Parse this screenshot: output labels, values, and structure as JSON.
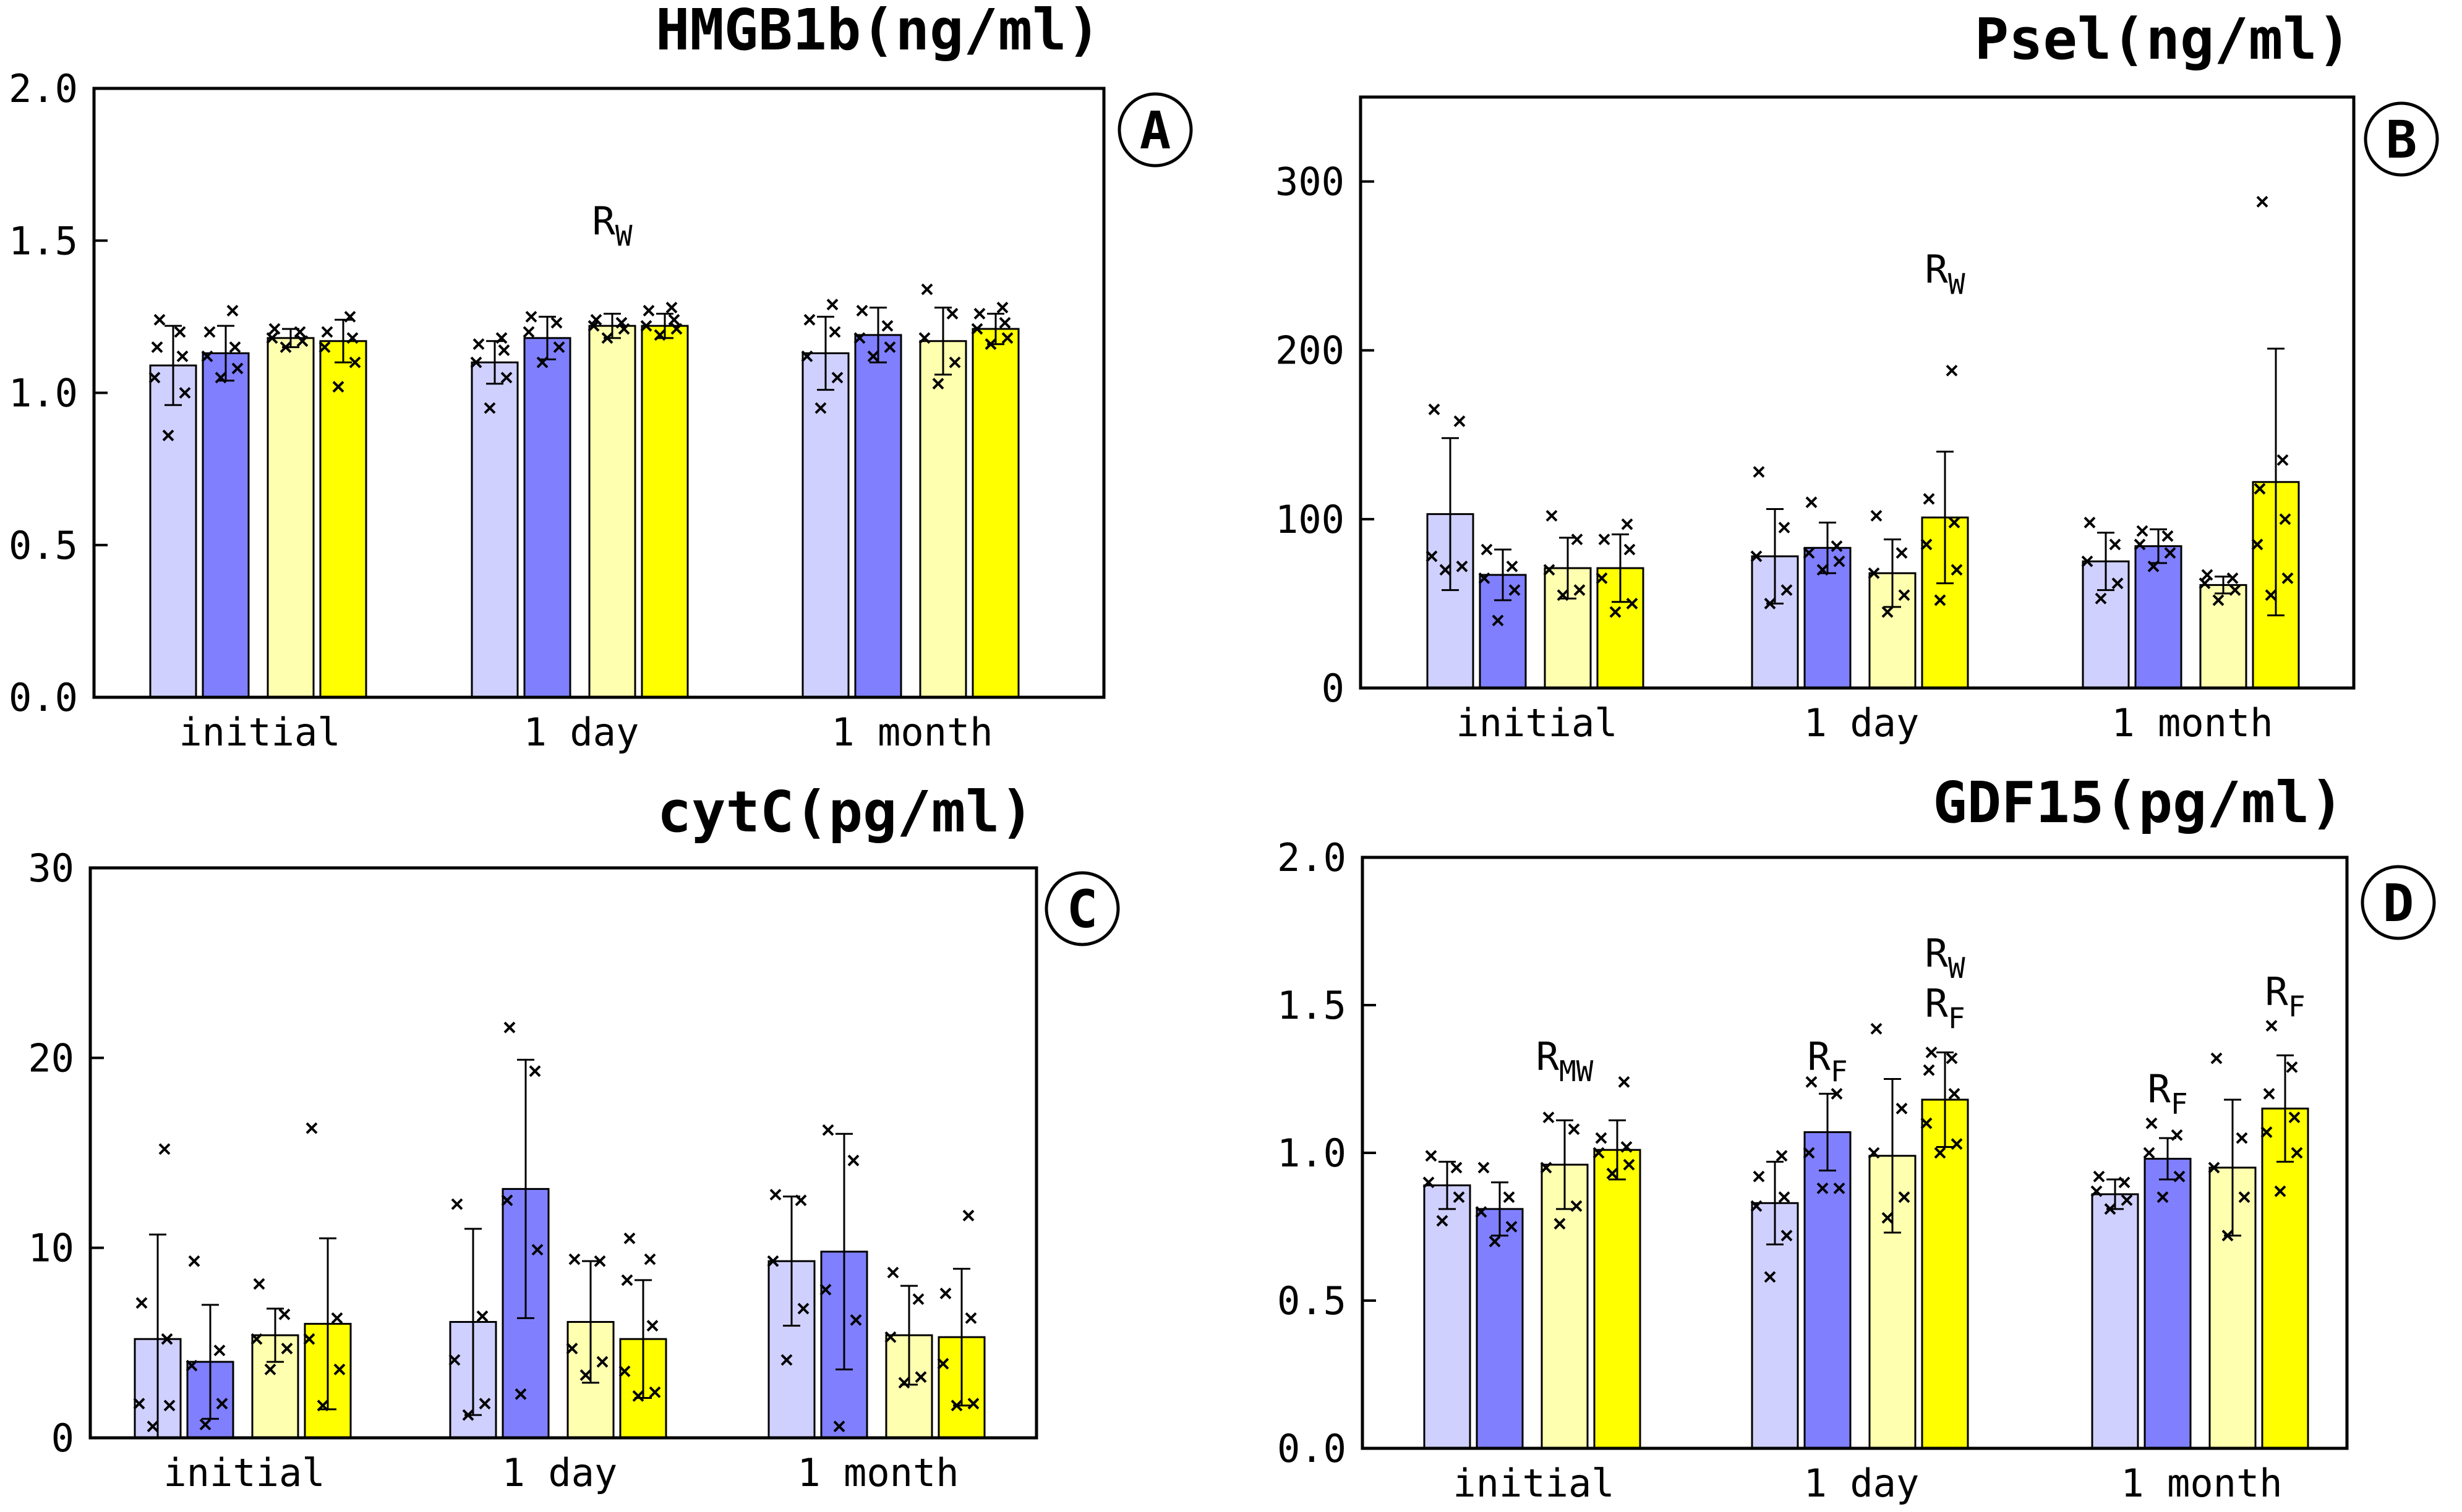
{
  "colors": {
    "light_blue": "#D0D0FF",
    "blue": "#8080FF",
    "light_yellow": "#FFFFB0",
    "yellow": "#FFFF00"
  },
  "chart_data": [
    {
      "type": "bar",
      "panel_label": "A",
      "title": "HMGB1b(ng/ml)",
      "categories": [
        "initial",
        "1 day",
        "1 month"
      ],
      "ylim": [
        0,
        2.0
      ],
      "yticks": [
        0.0,
        0.5,
        1.0,
        1.5,
        2.0
      ],
      "ytick_labels": [
        "0.0",
        "0.5",
        "1.0",
        "1.5",
        "2.0"
      ],
      "series": [
        {
          "name": "light blue",
          "values": [
            1.09,
            1.1,
            1.13
          ],
          "err": [
            0.13,
            0.07,
            0.12
          ],
          "points": [
            [
              0.86,
              1.0,
              1.05,
              1.12,
              1.15,
              1.2,
              1.24
            ],
            [
              0.95,
              1.05,
              1.1,
              1.14,
              1.16,
              1.18
            ],
            [
              0.95,
              1.05,
              1.12,
              1.2,
              1.24,
              1.29
            ]
          ]
        },
        {
          "name": "blue",
          "values": [
            1.13,
            1.18,
            1.19
          ],
          "err": [
            0.09,
            0.07,
            0.09
          ],
          "points": [
            [
              1.05,
              1.08,
              1.12,
              1.15,
              1.2,
              1.27
            ],
            [
              1.1,
              1.15,
              1.2,
              1.23,
              1.25
            ],
            [
              1.12,
              1.15,
              1.18,
              1.22,
              1.27
            ]
          ]
        },
        {
          "name": "light yellow",
          "values": [
            1.18,
            1.22,
            1.17
          ],
          "err": [
            0.03,
            0.04,
            0.11
          ],
          "points": [
            [
              1.15,
              1.17,
              1.18,
              1.2,
              1.21
            ],
            [
              1.18,
              1.21,
              1.22,
              1.23,
              1.24
            ],
            [
              1.03,
              1.1,
              1.18,
              1.26,
              1.34
            ]
          ]
        },
        {
          "name": "yellow",
          "values": [
            1.17,
            1.22,
            1.21
          ],
          "err": [
            0.07,
            0.04,
            0.05
          ],
          "points": [
            [
              1.02,
              1.1,
              1.15,
              1.18,
              1.2,
              1.25
            ],
            [
              1.19,
              1.21,
              1.22,
              1.24,
              1.27,
              1.28
            ],
            [
              1.16,
              1.18,
              1.21,
              1.23,
              1.26,
              1.28
            ]
          ]
        }
      ],
      "annotations": [
        {
          "text": "R",
          "sub": "W",
          "category": 1,
          "series": 2,
          "y": 1.52
        }
      ]
    },
    {
      "type": "bar",
      "panel_label": "B",
      "title": "Psel(ng/ml)",
      "categories": [
        "initial",
        "1 day",
        "1 month"
      ],
      "ylim": [
        0,
        350
      ],
      "yticks": [
        0,
        100,
        200,
        300
      ],
      "ytick_labels": [
        "0",
        "100",
        "200",
        "300"
      ],
      "series": [
        {
          "name": "light blue",
          "values": [
            103,
            78,
            75
          ],
          "err": [
            45,
            28,
            17
          ],
          "points": [
            [
              70,
              72,
              78,
              158,
              165
            ],
            [
              50,
              58,
              78,
              95,
              128
            ],
            [
              53,
              62,
              75,
              85,
              98
            ]
          ]
        },
        {
          "name": "blue",
          "values": [
            67,
            83,
            84
          ],
          "err": [
            15,
            15,
            10
          ],
          "points": [
            [
              40,
              58,
              65,
              72,
              82
            ],
            [
              70,
              75,
              80,
              84,
              110
            ],
            [
              72,
              80,
              85,
              90,
              93
            ]
          ]
        },
        {
          "name": "light yellow",
          "values": [
            71,
            68,
            61
          ],
          "err": [
            18,
            20,
            5
          ],
          "points": [
            [
              55,
              58,
              70,
              88,
              102
            ],
            [
              45,
              55,
              68,
              80,
              102
            ],
            [
              52,
              58,
              62,
              65,
              67
            ]
          ]
        },
        {
          "name": "yellow",
          "values": [
            71,
            101,
            122
          ],
          "err": [
            20,
            39,
            79
          ],
          "points": [
            [
              45,
              50,
              65,
              82,
              88,
              97
            ],
            [
              52,
              70,
              85,
              98,
              112,
              188
            ],
            [
              55,
              65,
              85,
              100,
              118,
              135,
              288
            ]
          ]
        }
      ],
      "annotations": [
        {
          "text": "R",
          "sub": "W",
          "category": 1,
          "series": 3,
          "y": 240
        }
      ]
    },
    {
      "type": "bar",
      "panel_label": "C",
      "title": "cytC(pg/ml)",
      "categories": [
        "initial",
        "1 day",
        "1 month"
      ],
      "ylim": [
        0,
        30
      ],
      "yticks": [
        0,
        10,
        20,
        30
      ],
      "ytick_labels": [
        "0",
        "10",
        "20",
        "30"
      ],
      "series": [
        {
          "name": "light blue",
          "values": [
            5.2,
            6.1,
            9.3
          ],
          "err": [
            5.5,
            4.9,
            3.4
          ],
          "points": [
            [
              0.6,
              1.7,
              1.8,
              5.2,
              7.1,
              15.2
            ],
            [
              1.2,
              1.8,
              4.1,
              6.4,
              12.3
            ],
            [
              4.1,
              6.8,
              9.3,
              12.5,
              12.8
            ]
          ]
        },
        {
          "name": "blue",
          "values": [
            4.0,
            13.1,
            9.8
          ],
          "err": [
            3.0,
            6.8,
            6.2
          ],
          "points": [
            [
              0.7,
              1.8,
              3.8,
              4.6,
              9.3
            ],
            [
              2.3,
              9.9,
              12.5,
              19.3,
              21.6
            ],
            [
              0.6,
              6.2,
              7.8,
              14.6,
              16.2
            ]
          ]
        },
        {
          "name": "light yellow",
          "values": [
            5.4,
            6.1,
            5.4
          ],
          "err": [
            1.4,
            3.2,
            2.6
          ],
          "points": [
            [
              3.6,
              4.7,
              5.2,
              6.5,
              8.1
            ],
            [
              3.3,
              4.0,
              4.7,
              9.3,
              9.4
            ],
            [
              2.9,
              3.2,
              5.3,
              7.3,
              8.7
            ]
          ]
        },
        {
          "name": "yellow",
          "values": [
            6.0,
            5.2,
            5.3
          ],
          "err": [
            4.5,
            3.1,
            3.6
          ],
          "points": [
            [
              1.7,
              3.6,
              5.2,
              6.3,
              16.3
            ],
            [
              2.2,
              2.4,
              3.5,
              5.9,
              8.3,
              9.4,
              10.5
            ],
            [
              1.7,
              1.8,
              3.9,
              6.3,
              7.6,
              11.7
            ]
          ]
        }
      ],
      "annotations": []
    },
    {
      "type": "bar",
      "panel_label": "D",
      "title": "GDF15(pg/ml)",
      "categories": [
        "initial",
        "1 day",
        "1 month"
      ],
      "ylim": [
        0,
        2.0
      ],
      "yticks": [
        0.0,
        0.5,
        1.0,
        1.5,
        2.0
      ],
      "ytick_labels": [
        "0.0",
        "0.5",
        "1.0",
        "1.5",
        "2.0"
      ],
      "series": [
        {
          "name": "light blue",
          "values": [
            0.89,
            0.83,
            0.86
          ],
          "err": [
            0.08,
            0.14,
            0.05
          ],
          "points": [
            [
              0.77,
              0.85,
              0.9,
              0.95,
              0.99
            ],
            [
              0.58,
              0.72,
              0.82,
              0.85,
              0.92,
              0.99
            ],
            [
              0.81,
              0.84,
              0.87,
              0.9,
              0.92
            ]
          ]
        },
        {
          "name": "blue",
          "values": [
            0.81,
            1.07,
            0.98
          ],
          "err": [
            0.09,
            0.13,
            0.07
          ],
          "points": [
            [
              0.7,
              0.75,
              0.8,
              0.85,
              0.95
            ],
            [
              0.88,
              0.88,
              1.0,
              1.2,
              1.24
            ],
            [
              0.85,
              0.92,
              1.0,
              1.06,
              1.1
            ]
          ]
        },
        {
          "name": "light yellow",
          "values": [
            0.96,
            0.99,
            0.95
          ],
          "err": [
            0.15,
            0.26,
            0.23
          ],
          "points": [
            [
              0.76,
              0.82,
              0.95,
              1.08,
              1.12
            ],
            [
              0.78,
              0.85,
              1.0,
              1.15,
              1.42
            ],
            [
              0.72,
              0.85,
              0.95,
              1.05,
              1.32
            ]
          ]
        },
        {
          "name": "yellow",
          "values": [
            1.01,
            1.18,
            1.15
          ],
          "err": [
            0.1,
            0.16,
            0.18
          ],
          "points": [
            [
              0.93,
              0.96,
              1.0,
              1.02,
              1.05,
              1.24
            ],
            [
              1.0,
              1.03,
              1.1,
              1.2,
              1.28,
              1.32,
              1.34
            ],
            [
              0.87,
              1.0,
              1.07,
              1.12,
              1.2,
              1.29,
              1.43
            ]
          ]
        }
      ],
      "annotations": [
        {
          "text": "R",
          "sub": "MW",
          "category": 0,
          "series": 2,
          "y": 1.28
        },
        {
          "text": "R",
          "sub": "F",
          "category": 1,
          "series": 1,
          "y": 1.28
        },
        {
          "text": "R",
          "sub": "W",
          "category": 1,
          "series": 3,
          "y": 1.63
        },
        {
          "text": "R",
          "sub": "F",
          "category": 1,
          "series": 3,
          "y": 1.46
        },
        {
          "text": "R",
          "sub": "F",
          "category": 2,
          "series": 1,
          "y": 1.17
        },
        {
          "text": "R",
          "sub": "F",
          "category": 2,
          "series": 3,
          "y": 1.5
        }
      ]
    }
  ]
}
